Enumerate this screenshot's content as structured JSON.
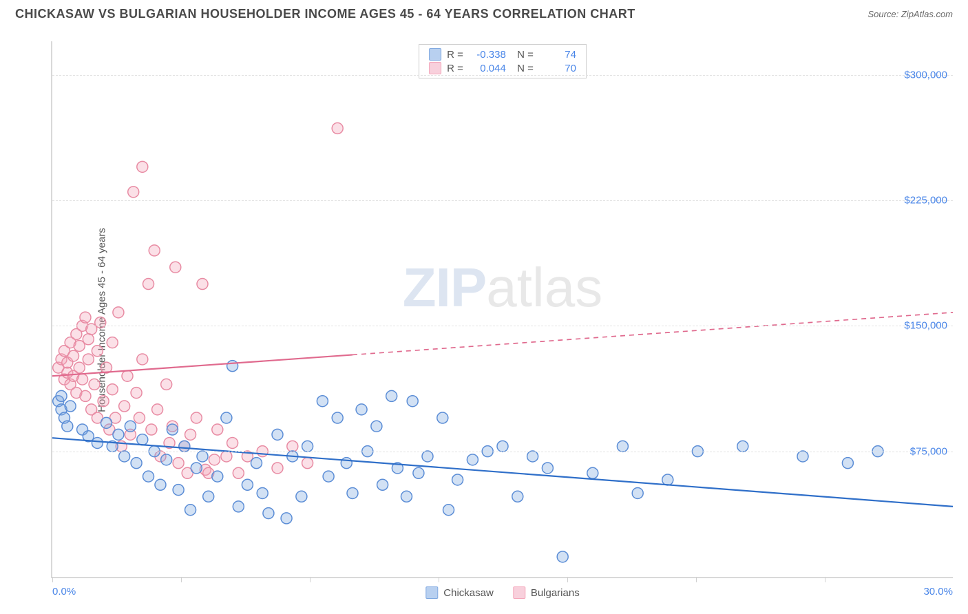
{
  "header": {
    "title": "CHICKASAW VS BULGARIAN HOUSEHOLDER INCOME AGES 45 - 64 YEARS CORRELATION CHART",
    "source": "Source: ZipAtlas.com"
  },
  "chart": {
    "type": "scatter",
    "ylabel": "Householder Income Ages 45 - 64 years",
    "background_color": "#ffffff",
    "grid_color": "#e2e2e2",
    "axis_color": "#d9d9d9",
    "tick_label_color": "#4a86e8",
    "xlim": [
      0,
      30
    ],
    "ylim": [
      0,
      320000
    ],
    "x_tick_step": 4.29,
    "y_ticks": [
      75000,
      150000,
      225000,
      300000
    ],
    "y_tick_labels": [
      "$75,000",
      "$150,000",
      "$225,000",
      "$300,000"
    ],
    "x_min_label": "0.0%",
    "x_max_label": "30.0%",
    "marker_radius": 8,
    "marker_fill_opacity": 0.35,
    "marker_stroke_width": 1.5,
    "line_width": 2.2,
    "series": [
      {
        "name": "Chickasaw",
        "color": "#7fa8e0",
        "stroke": "#5b8dd6",
        "line_color": "#2f6fc9",
        "r": "-0.338",
        "n": "74",
        "trend": {
          "x1": 0,
          "y1": 83000,
          "x2": 30,
          "y2": 42000,
          "dash_from_x": 30
        },
        "points": [
          [
            0.2,
            105000
          ],
          [
            0.3,
            100000
          ],
          [
            0.4,
            95000
          ],
          [
            0.3,
            108000
          ],
          [
            0.5,
            90000
          ],
          [
            0.6,
            102000
          ],
          [
            1.0,
            88000
          ],
          [
            1.2,
            84000
          ],
          [
            1.5,
            80000
          ],
          [
            1.8,
            92000
          ],
          [
            2.0,
            78000
          ],
          [
            2.2,
            85000
          ],
          [
            2.4,
            72000
          ],
          [
            2.6,
            90000
          ],
          [
            2.8,
            68000
          ],
          [
            3.0,
            82000
          ],
          [
            3.2,
            60000
          ],
          [
            3.4,
            75000
          ],
          [
            3.6,
            55000
          ],
          [
            3.8,
            70000
          ],
          [
            4.0,
            88000
          ],
          [
            4.2,
            52000
          ],
          [
            4.4,
            78000
          ],
          [
            4.6,
            40000
          ],
          [
            4.8,
            65000
          ],
          [
            5.0,
            72000
          ],
          [
            5.2,
            48000
          ],
          [
            5.5,
            60000
          ],
          [
            5.8,
            95000
          ],
          [
            6.0,
            126000
          ],
          [
            6.2,
            42000
          ],
          [
            6.5,
            55000
          ],
          [
            6.8,
            68000
          ],
          [
            7.0,
            50000
          ],
          [
            7.2,
            38000
          ],
          [
            7.5,
            85000
          ],
          [
            7.8,
            35000
          ],
          [
            8.0,
            72000
          ],
          [
            8.3,
            48000
          ],
          [
            8.5,
            78000
          ],
          [
            9.0,
            105000
          ],
          [
            9.2,
            60000
          ],
          [
            9.5,
            95000
          ],
          [
            9.8,
            68000
          ],
          [
            10.0,
            50000
          ],
          [
            10.3,
            100000
          ],
          [
            10.5,
            75000
          ],
          [
            10.8,
            90000
          ],
          [
            11.0,
            55000
          ],
          [
            11.3,
            108000
          ],
          [
            11.5,
            65000
          ],
          [
            11.8,
            48000
          ],
          [
            12.0,
            105000
          ],
          [
            12.2,
            62000
          ],
          [
            12.5,
            72000
          ],
          [
            13.0,
            95000
          ],
          [
            13.2,
            40000
          ],
          [
            13.5,
            58000
          ],
          [
            14.0,
            70000
          ],
          [
            14.5,
            75000
          ],
          [
            15.0,
            78000
          ],
          [
            15.5,
            48000
          ],
          [
            16.0,
            72000
          ],
          [
            16.5,
            65000
          ],
          [
            17.0,
            12000
          ],
          [
            18.0,
            62000
          ],
          [
            19.0,
            78000
          ],
          [
            19.5,
            50000
          ],
          [
            20.5,
            58000
          ],
          [
            21.5,
            75000
          ],
          [
            23.0,
            78000
          ],
          [
            25.0,
            72000
          ],
          [
            26.5,
            68000
          ],
          [
            27.5,
            75000
          ]
        ]
      },
      {
        "name": "Bulgarians",
        "color": "#f4a6ba",
        "stroke": "#e88ba3",
        "line_color": "#e06a8e",
        "r": "0.044",
        "n": "70",
        "trend": {
          "x1": 0,
          "y1": 120000,
          "x2": 30,
          "y2": 158000,
          "dash_from_x": 10
        },
        "points": [
          [
            0.2,
            125000
          ],
          [
            0.3,
            130000
          ],
          [
            0.4,
            118000
          ],
          [
            0.4,
            135000
          ],
          [
            0.5,
            122000
          ],
          [
            0.5,
            128000
          ],
          [
            0.6,
            140000
          ],
          [
            0.6,
            115000
          ],
          [
            0.7,
            132000
          ],
          [
            0.7,
            120000
          ],
          [
            0.8,
            145000
          ],
          [
            0.8,
            110000
          ],
          [
            0.9,
            138000
          ],
          [
            0.9,
            125000
          ],
          [
            1.0,
            150000
          ],
          [
            1.0,
            118000
          ],
          [
            1.1,
            155000
          ],
          [
            1.1,
            108000
          ],
          [
            1.2,
            130000
          ],
          [
            1.2,
            142000
          ],
          [
            1.3,
            100000
          ],
          [
            1.3,
            148000
          ],
          [
            1.4,
            115000
          ],
          [
            1.5,
            135000
          ],
          [
            1.5,
            95000
          ],
          [
            1.6,
            152000
          ],
          [
            1.7,
            105000
          ],
          [
            1.8,
            125000
          ],
          [
            1.9,
            88000
          ],
          [
            2.0,
            140000
          ],
          [
            2.0,
            112000
          ],
          [
            2.1,
            95000
          ],
          [
            2.2,
            158000
          ],
          [
            2.3,
            78000
          ],
          [
            2.4,
            102000
          ],
          [
            2.5,
            120000
          ],
          [
            2.6,
            85000
          ],
          [
            2.7,
            230000
          ],
          [
            2.8,
            110000
          ],
          [
            2.9,
            95000
          ],
          [
            3.0,
            245000
          ],
          [
            3.0,
            130000
          ],
          [
            3.2,
            175000
          ],
          [
            3.3,
            88000
          ],
          [
            3.4,
            195000
          ],
          [
            3.5,
            100000
          ],
          [
            3.6,
            72000
          ],
          [
            3.8,
            115000
          ],
          [
            3.9,
            80000
          ],
          [
            4.0,
            90000
          ],
          [
            4.1,
            185000
          ],
          [
            4.2,
            68000
          ],
          [
            4.4,
            78000
          ],
          [
            4.5,
            62000
          ],
          [
            4.6,
            85000
          ],
          [
            4.8,
            95000
          ],
          [
            5.0,
            175000
          ],
          [
            5.1,
            64000
          ],
          [
            5.2,
            62000
          ],
          [
            5.4,
            70000
          ],
          [
            5.5,
            88000
          ],
          [
            5.8,
            72000
          ],
          [
            6.0,
            80000
          ],
          [
            6.2,
            62000
          ],
          [
            6.5,
            72000
          ],
          [
            7.0,
            75000
          ],
          [
            7.5,
            65000
          ],
          [
            8.0,
            78000
          ],
          [
            8.5,
            68000
          ],
          [
            9.5,
            268000
          ]
        ]
      }
    ],
    "bottom_legend": [
      {
        "label": "Chickasaw",
        "fill": "#b8d0f0",
        "stroke": "#7fa8e0"
      },
      {
        "label": "Bulgarians",
        "fill": "#f8d0dc",
        "stroke": "#f4a6ba"
      }
    ],
    "watermark": {
      "zip": "ZIP",
      "atlas": "atlas"
    }
  }
}
